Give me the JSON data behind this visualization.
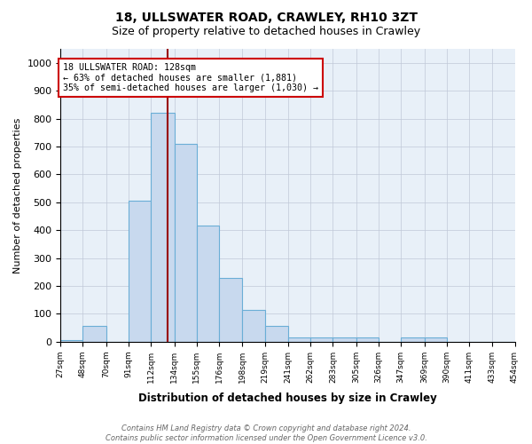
{
  "title1": "18, ULLSWATER ROAD, CRAWLEY, RH10 3ZT",
  "title2": "Size of property relative to detached houses in Crawley",
  "xlabel": "Distribution of detached houses by size in Crawley",
  "ylabel": "Number of detached properties",
  "bin_edges": [
    27,
    48,
    70,
    91,
    112,
    134,
    155,
    176,
    198,
    219,
    241,
    262,
    283,
    305,
    326,
    347,
    369,
    390,
    411,
    433,
    454
  ],
  "bar_heights": [
    5,
    57,
    0,
    505,
    820,
    710,
    415,
    230,
    115,
    57,
    14,
    14,
    14,
    14,
    0,
    14,
    14,
    0,
    0,
    0
  ],
  "bar_color": "#c8d9ee",
  "bar_edge_color": "#6aaed6",
  "plot_bg_color": "#e8f0f8",
  "property_size": 128,
  "vline_color": "#990000",
  "annotation_text": "18 ULLSWATER ROAD: 128sqm\n← 63% of detached houses are smaller (1,881)\n35% of semi-detached houses are larger (1,030) →",
  "annotation_box_color": "#ffffff",
  "annotation_box_edge_color": "#cc0000",
  "ylim": [
    0,
    1050
  ],
  "footnote": "Contains HM Land Registry data © Crown copyright and database right 2024.\nContains public sector information licensed under the Open Government Licence v3.0.",
  "background_color": "#ffffff",
  "grid_color": "#c0c8d8"
}
